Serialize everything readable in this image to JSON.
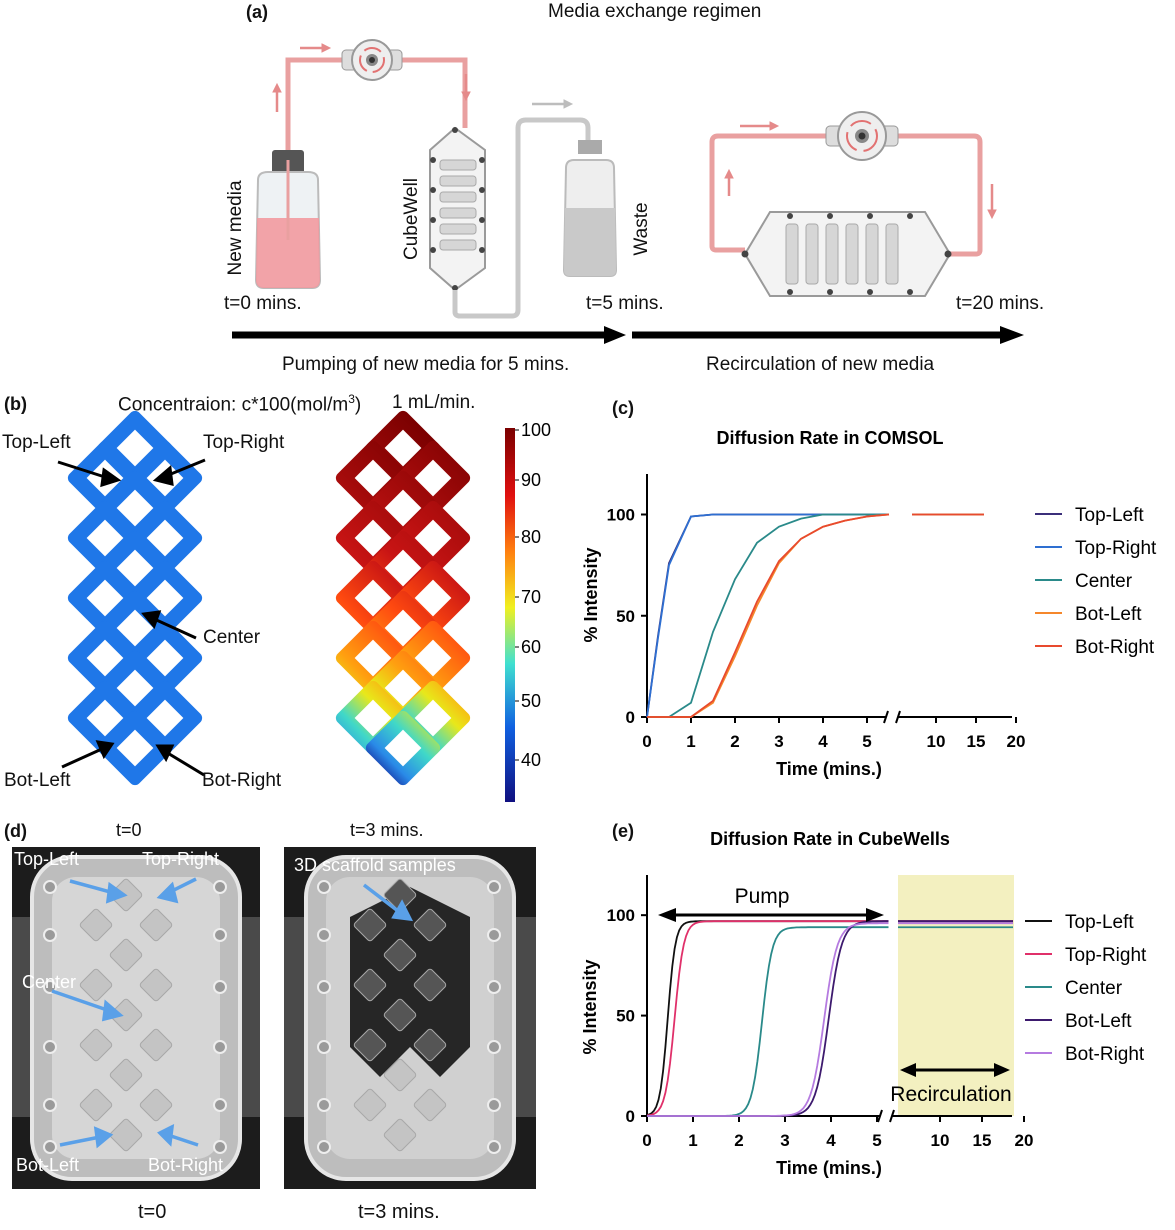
{
  "panel_a": {
    "letter": "(a)",
    "title": "Media exchange regimen",
    "new_media": "New media",
    "cubewell": "CubeWell",
    "waste": "Waste",
    "t0": "t=0 mins.",
    "t5": "t=5 mins.",
    "t20": "t=20 mins.",
    "pumping": "Pumping of new media for 5 mins.",
    "recirculation": "Recirculation of new media",
    "colors": {
      "tube_red": "#e9a0a0",
      "tube_gray": "#c8c8c8",
      "media": "#f29aa0",
      "waste": "#c9c9c9"
    }
  },
  "panel_b": {
    "letter": "(b)",
    "concentration_label": "Concentraion: c*100(mol/m",
    "concentration_sup": "3",
    "concentration_close": ")",
    "flow": "1 mL/min.",
    "labels": {
      "top_left": "Top-Left",
      "top_right": "Top-Right",
      "center": "Center",
      "bot_left": "Bot-Left",
      "bot_right": "Bot-Right"
    },
    "colorbar_ticks": [
      "100",
      "90",
      "80",
      "70",
      "60",
      "50",
      "40"
    ],
    "colors": {
      "blue": "#1f77e8",
      "dark_red": "#8b0000"
    }
  },
  "panel_c": {
    "letter": "(c)",
    "chart_data": {
      "type": "line",
      "title": "Diffusion Rate in COMSOL",
      "xlabel": "Time (mins.)",
      "ylabel": "% Intensity",
      "ylim": [
        0,
        120
      ],
      "yticks": [
        "0",
        "50",
        "100"
      ],
      "xticks_left": [
        "0",
        "1",
        "2",
        "3",
        "4",
        "5"
      ],
      "xticks_right": [
        "10",
        "15",
        "20"
      ],
      "series": [
        {
          "name": "Top-Left",
          "color": "#3b2f7a",
          "x": [
            0,
            0.25,
            0.5,
            1,
            1.5,
            2,
            3,
            4,
            5,
            5.5
          ],
          "y": [
            0,
            40,
            76,
            99,
            100,
            100,
            100,
            100,
            100,
            100
          ],
          "tail": [
            [
              6,
              100
            ],
            [
              15,
              100
            ]
          ]
        },
        {
          "name": "Top-Right",
          "color": "#2e6fd1",
          "x": [
            0,
            0.25,
            0.5,
            1,
            1.5,
            2,
            3,
            4,
            5,
            5.5
          ],
          "y": [
            0,
            39,
            75,
            99,
            100,
            100,
            100,
            100,
            100,
            100
          ],
          "tail": [
            [
              6,
              100
            ],
            [
              15,
              100
            ]
          ]
        },
        {
          "name": "Center",
          "color": "#2a8a8a",
          "x": [
            0,
            0.5,
            1,
            1.5,
            2,
            2.5,
            3,
            3.5,
            4,
            4.5,
            5,
            5.5
          ],
          "y": [
            0,
            0,
            7,
            42,
            68,
            86,
            94,
            98,
            100,
            100,
            100,
            100
          ],
          "tail": [
            [
              6,
              100
            ],
            [
              15,
              100
            ]
          ]
        },
        {
          "name": "Bot-Left",
          "color": "#f5872b",
          "x": [
            0,
            1,
            1.5,
            2,
            2.5,
            3,
            3.5,
            4,
            4.5,
            5,
            5.5
          ],
          "y": [
            0,
            0,
            7,
            30,
            55,
            76,
            88,
            94,
            97,
            99,
            100
          ],
          "tail": [
            [
              6,
              100
            ],
            [
              15,
              100
            ]
          ]
        },
        {
          "name": "Bot-Right",
          "color": "#e84a2e",
          "x": [
            0,
            1,
            1.5,
            2,
            2.5,
            3,
            3.5,
            4,
            4.5,
            5,
            5.5
          ],
          "y": [
            0,
            0,
            8,
            32,
            57,
            77,
            88,
            94,
            97,
            99,
            100
          ],
          "tail": [
            [
              6,
              100
            ],
            [
              15,
              100
            ]
          ]
        }
      ]
    }
  },
  "panel_d": {
    "letter": "(d)",
    "t0_top": "t=0",
    "t3_top": "t=3 mins.",
    "t0_bottom": "t=0",
    "t3_bottom": "t=3 mins.",
    "labels": {
      "top_left": "Top-Left",
      "top_right": "Top-Right",
      "center": "Center",
      "bot_left": "Bot-Left",
      "bot_right": "Bot-Right",
      "scaffold": "3D scaffold samples"
    },
    "arrow_color": "#5aa0e8"
  },
  "panel_e": {
    "letter": "(e)",
    "pump_label": "Pump",
    "recirc_label": "Recirculation",
    "recirc_color": "#f3f0c0",
    "chart_data": {
      "type": "line",
      "title": "Diffusion Rate in CubeWells",
      "xlabel": "Time (mins.)",
      "ylabel": "% Intensity",
      "ylim": [
        0,
        120
      ],
      "yticks": [
        "0",
        "50",
        "100"
      ],
      "xticks_left": [
        "0",
        "1",
        "2",
        "3",
        "4",
        "5"
      ],
      "xticks_right": [
        "10",
        "15",
        "20"
      ],
      "series": [
        {
          "name": "Top-Left",
          "color": "#111111",
          "mid": 0.45,
          "k": 12,
          "max": 97
        },
        {
          "name": "Top-Right",
          "color": "#e0306a",
          "mid": 0.6,
          "k": 10,
          "max": 97
        },
        {
          "name": "Center",
          "color": "#2a8a8a",
          "mid": 2.5,
          "k": 9,
          "max": 94
        },
        {
          "name": "Bot-Left",
          "color": "#3d1a6e",
          "mid": 3.95,
          "k": 7,
          "max": 97
        },
        {
          "name": "Bot-Right",
          "color": "#b57be0",
          "mid": 3.85,
          "k": 7,
          "max": 96
        }
      ]
    }
  }
}
